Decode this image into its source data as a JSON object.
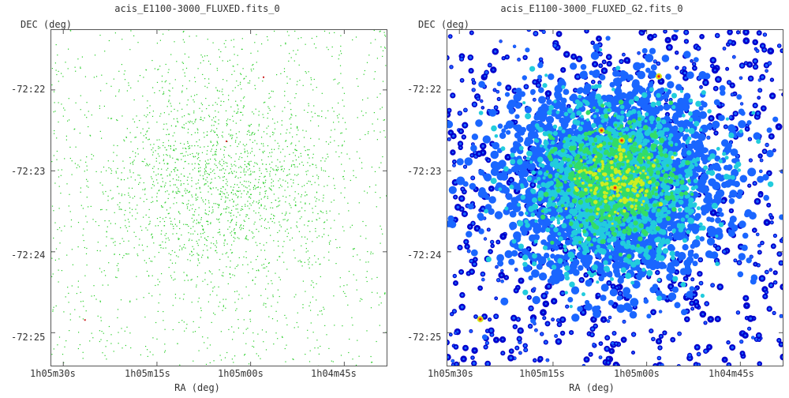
{
  "chart_data": [
    {
      "type": "scatter",
      "title": "acis_E1100-3000_FLUXED.fits_0",
      "xlabel": "RA (deg)",
      "ylabel": "DEC (deg)",
      "x_ticks": [
        "1h05m30s",
        "1h05m15s",
        "1h05m00s",
        "1h04m45s"
      ],
      "y_ticks": [
        "-72:22",
        "-72:23",
        "-72:24",
        "-72:25"
      ],
      "colors": {
        "points": "#22cc22",
        "bright": "#cc2222",
        "frame": "#555555"
      },
      "description_of_marks": "sparse single-pixel event map"
    },
    {
      "type": "heatmap",
      "title": "acis_E1100-3000_FLUXED_G2.fits_0",
      "xlabel": "RA (deg)",
      "ylabel": "DEC (deg)",
      "x_ticks": [
        "1h05m30s",
        "1h05m15s",
        "1h05m00s",
        "1h04m45s"
      ],
      "y_ticks": [
        "-72:22",
        "-72:23",
        "-72:24",
        "-72:25"
      ],
      "colormap": [
        "#0000cc",
        "#1a66ff",
        "#22ccdd",
        "#33dd66",
        "#ccee22",
        "#ffaa00",
        "#dd2222"
      ]
    }
  ]
}
